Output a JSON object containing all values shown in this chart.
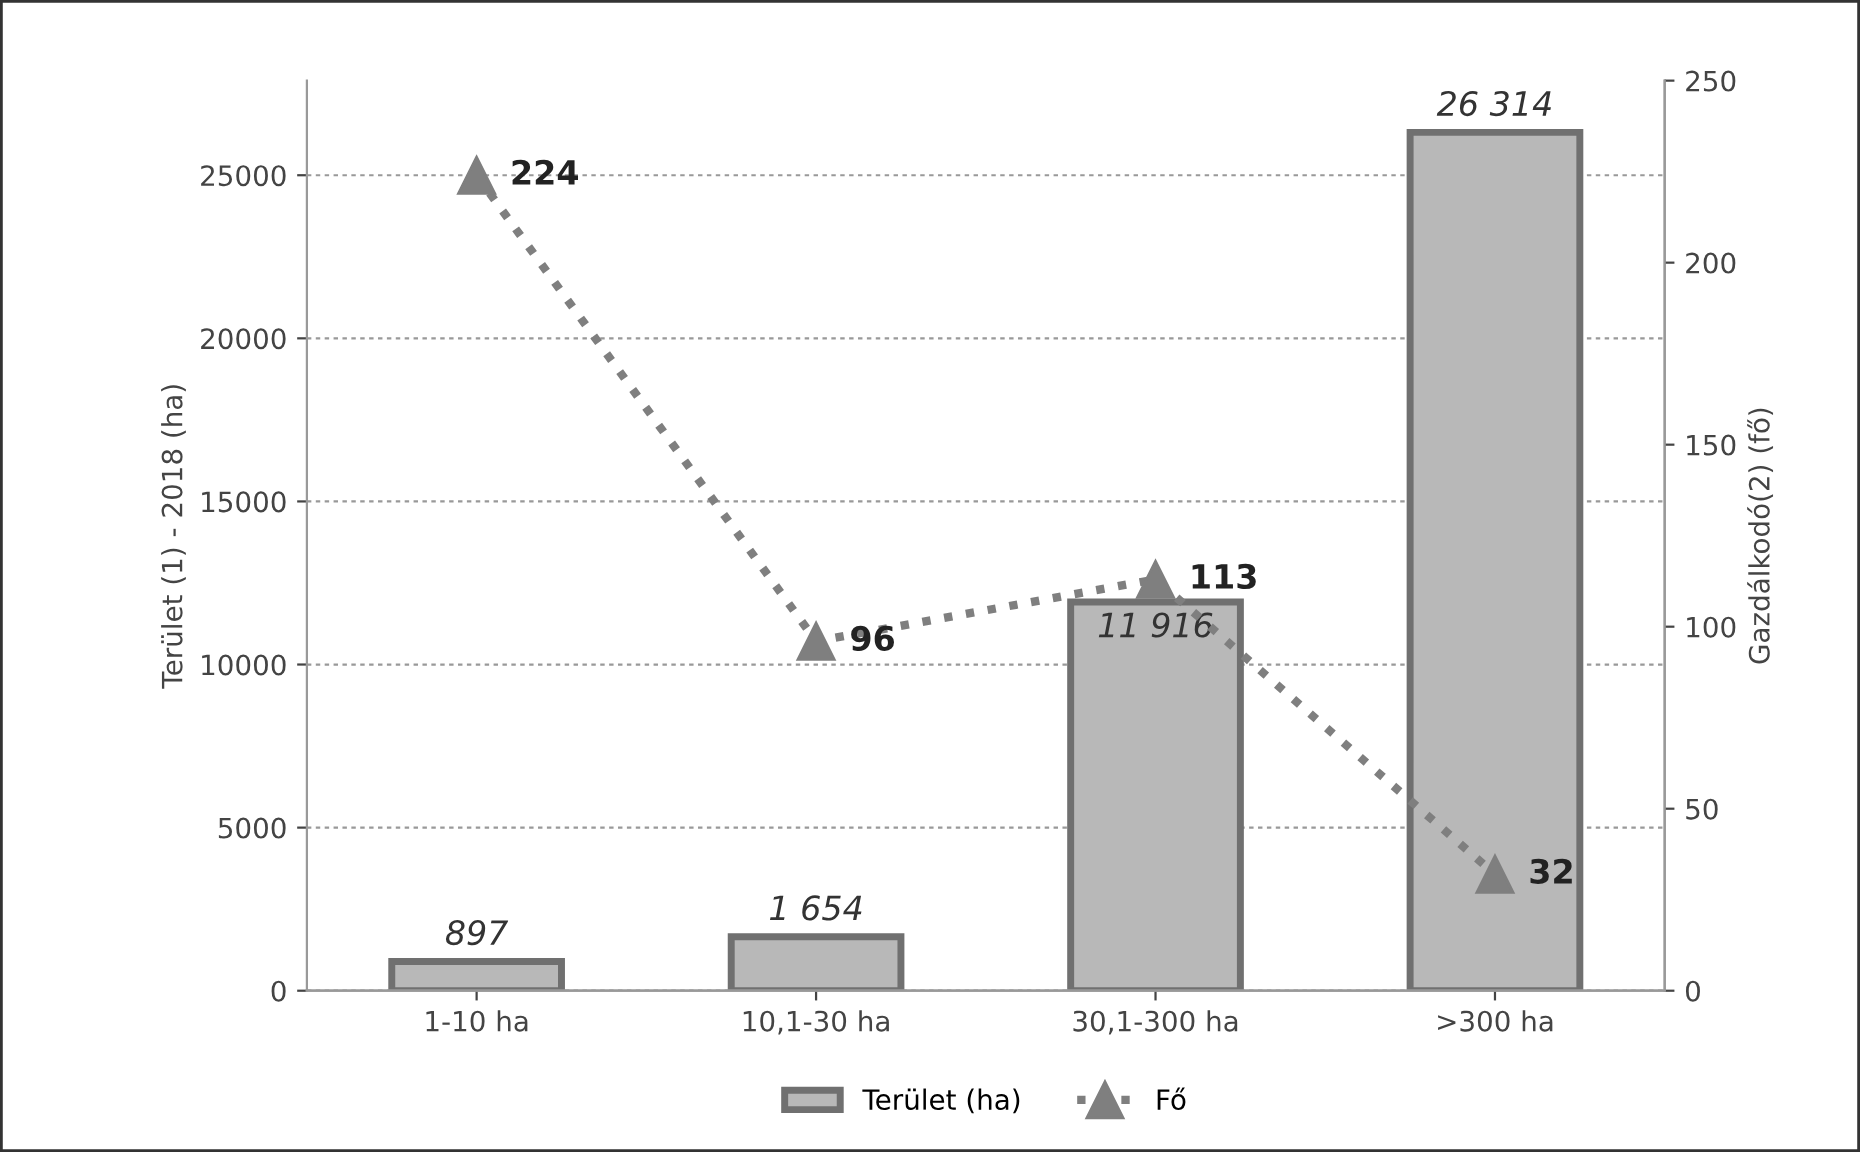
{
  "chart_data": {
    "type": "bar",
    "categories": [
      "1-10 ha",
      "10,1-30 ha",
      "30,1-300 ha",
      ">300 ha"
    ],
    "ylabel": "Terület (1) - 2018 (ha)",
    "y2label": "Gazdálkodó(2) (fő)",
    "ylim": [
      0,
      27900
    ],
    "yticks": [
      0,
      5000,
      10000,
      15000,
      20000,
      25000
    ],
    "y2lim": [
      0,
      250
    ],
    "y2ticks": [
      0,
      50,
      100,
      150,
      200,
      250
    ],
    "grid": "y",
    "legend": "bottom",
    "series": [
      {
        "name": "Terület (ha)",
        "color": "#b8b8b8",
        "values": [
          897,
          1654,
          11916,
          26314
        ],
        "value_labels": [
          "897",
          "1 654",
          "11 916",
          "26 314"
        ]
      },
      {
        "name": "Fő",
        "type": "line",
        "axis": "y2",
        "color": "#7f7f7f",
        "marker": "triangle",
        "line_style": "dotted",
        "values": [
          224,
          96,
          113,
          32
        ],
        "value_labels": [
          "224",
          "96",
          "113",
          "32"
        ]
      }
    ]
  }
}
